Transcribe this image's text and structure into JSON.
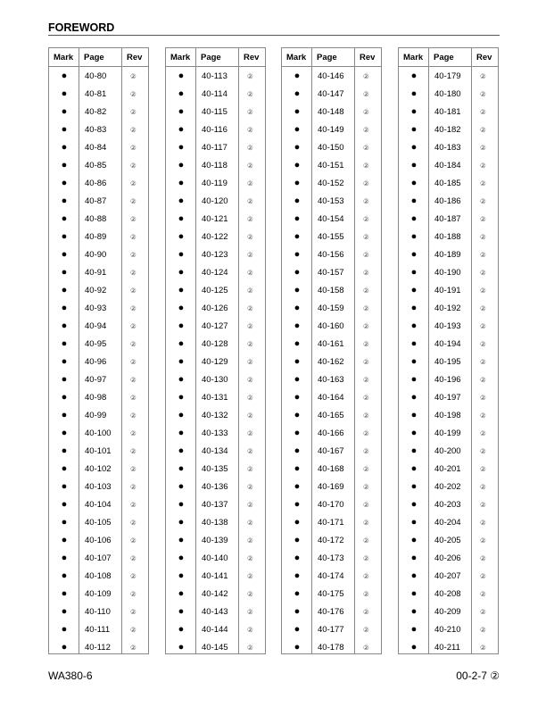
{
  "header": {
    "title": "FOREWORD"
  },
  "table_headers": {
    "mark": "Mark",
    "page": "Page",
    "rev": "Rev"
  },
  "mark_symbol": "●",
  "rev_symbol": "②",
  "columns": [
    {
      "pages": [
        "40-80",
        "40-81",
        "40-82",
        "40-83",
        "40-84",
        "40-85",
        "40-86",
        "40-87",
        "40-88",
        "40-89",
        "40-90",
        "40-91",
        "40-92",
        "40-93",
        "40-94",
        "40-95",
        "40-96",
        "40-97",
        "40-98",
        "40-99",
        "40-100",
        "40-101",
        "40-102",
        "40-103",
        "40-104",
        "40-105",
        "40-106",
        "40-107",
        "40-108",
        "40-109",
        "40-110",
        "40-111",
        "40-112"
      ]
    },
    {
      "pages": [
        "40-113",
        "40-114",
        "40-115",
        "40-116",
        "40-117",
        "40-118",
        "40-119",
        "40-120",
        "40-121",
        "40-122",
        "40-123",
        "40-124",
        "40-125",
        "40-126",
        "40-127",
        "40-128",
        "40-129",
        "40-130",
        "40-131",
        "40-132",
        "40-133",
        "40-134",
        "40-135",
        "40-136",
        "40-137",
        "40-138",
        "40-139",
        "40-140",
        "40-141",
        "40-142",
        "40-143",
        "40-144",
        "40-145"
      ]
    },
    {
      "pages": [
        "40-146",
        "40-147",
        "40-148",
        "40-149",
        "40-150",
        "40-151",
        "40-152",
        "40-153",
        "40-154",
        "40-155",
        "40-156",
        "40-157",
        "40-158",
        "40-159",
        "40-160",
        "40-161",
        "40-162",
        "40-163",
        "40-164",
        "40-165",
        "40-166",
        "40-167",
        "40-168",
        "40-169",
        "40-170",
        "40-171",
        "40-172",
        "40-173",
        "40-174",
        "40-175",
        "40-176",
        "40-177",
        "40-178"
      ]
    },
    {
      "pages": [
        "40-179",
        "40-180",
        "40-181",
        "40-182",
        "40-183",
        "40-184",
        "40-185",
        "40-186",
        "40-187",
        "40-188",
        "40-189",
        "40-190",
        "40-191",
        "40-192",
        "40-193",
        "40-194",
        "40-195",
        "40-196",
        "40-197",
        "40-198",
        "40-199",
        "40-200",
        "40-201",
        "40-202",
        "40-203",
        "40-204",
        "40-205",
        "40-206",
        "40-207",
        "40-208",
        "40-209",
        "40-210",
        "40-211"
      ]
    }
  ],
  "footer": {
    "model": "WA380-6",
    "page_number": "00-2-7 ②"
  }
}
